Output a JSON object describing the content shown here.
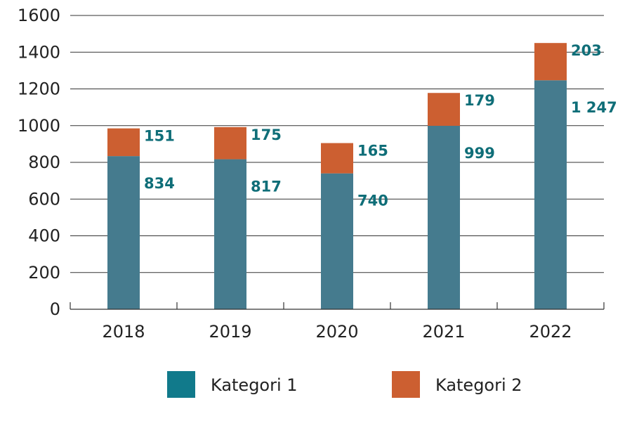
{
  "chart_data": {
    "type": "bar",
    "stacked": true,
    "categories": [
      "2018",
      "2019",
      "2020",
      "2021",
      "2022"
    ],
    "series": [
      {
        "name": "Kategori 1",
        "values": [
          834,
          817,
          740,
          999,
          1247
        ],
        "labels": [
          "834",
          "817",
          "740",
          "999",
          "1 247"
        ],
        "color": "#457b8e"
      },
      {
        "name": "Kategori 2",
        "values": [
          151,
          175,
          165,
          179,
          203
        ],
        "labels": [
          "151",
          "175",
          "165",
          "179",
          "203"
        ],
        "color": "#cc5f31"
      }
    ],
    "y_ticks": [
      "0",
      "200",
      "400",
      "600",
      "800",
      "1000",
      "1200",
      "1400",
      "1600"
    ],
    "ylim": [
      0,
      1600
    ],
    "grid": true,
    "legend_position": "bottom",
    "label_color": "#0f6e78",
    "legend": [
      {
        "label": "Kategori 1",
        "color": "#117a8b"
      },
      {
        "label": "Kategori 2",
        "color": "#cc5f31"
      }
    ]
  }
}
